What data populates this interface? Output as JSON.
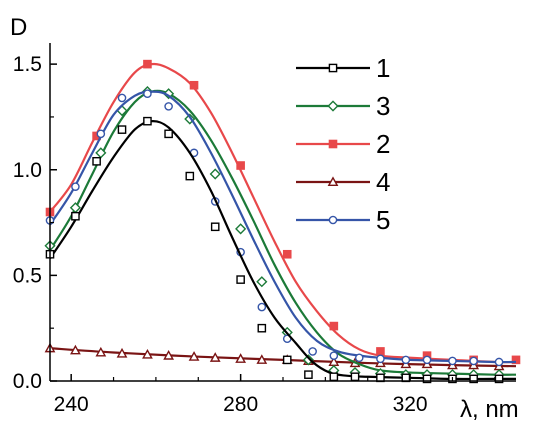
{
  "chart_data": {
    "type": "line",
    "xlabel": "λ, nm",
    "ylabel": "D",
    "xlim": [
      235,
      345
    ],
    "ylim": [
      0,
      1.6
    ],
    "x_ticks": [
      "240",
      "280",
      "320"
    ],
    "x_tick_values": [
      240,
      280,
      320
    ],
    "y_ticks": [
      "0.0",
      "0.5",
      "1.0",
      "1.5"
    ],
    "y_tick_values": [
      0,
      0.5,
      1.0,
      1.5
    ],
    "grid": false,
    "legend_position": "top-right",
    "series": [
      {
        "name": "1",
        "color": "#000000",
        "marker": "square-open",
        "points": [
          [
            235,
            0.58
          ],
          [
            240,
            0.73
          ],
          [
            245,
            0.9
          ],
          [
            250,
            1.06
          ],
          [
            255,
            1.19
          ],
          [
            259,
            1.23
          ],
          [
            263,
            1.2
          ],
          [
            268,
            1.08
          ],
          [
            273,
            0.9
          ],
          [
            278,
            0.68
          ],
          [
            283,
            0.47
          ],
          [
            288,
            0.3
          ],
          [
            293,
            0.18
          ],
          [
            297,
            0.09
          ],
          [
            301,
            0.04
          ],
          [
            305,
            0.025
          ],
          [
            310,
            0.02
          ],
          [
            320,
            0.015
          ],
          [
            330,
            0.01
          ],
          [
            340,
            0.01
          ],
          [
            345,
            0.01
          ]
        ],
        "marker_points": [
          [
            235,
            0.6
          ],
          [
            241,
            0.78
          ],
          [
            246,
            1.04
          ],
          [
            252,
            1.19
          ],
          [
            258,
            1.23
          ],
          [
            263,
            1.17
          ],
          [
            268,
            0.97
          ],
          [
            274,
            0.73
          ],
          [
            280,
            0.48
          ],
          [
            285,
            0.25
          ],
          [
            291,
            0.1
          ],
          [
            296,
            0.03
          ],
          [
            302,
            0.02
          ],
          [
            307,
            0.02
          ],
          [
            313,
            0.015
          ],
          [
            319,
            0.015
          ],
          [
            324,
            0.01
          ],
          [
            330,
            0.01
          ],
          [
            335,
            0.01
          ],
          [
            341,
            0.01
          ]
        ]
      },
      {
        "name": "3",
        "color": "#1c7a38",
        "marker": "diamond-open",
        "points": [
          [
            235,
            0.62
          ],
          [
            240,
            0.78
          ],
          [
            245,
            0.98
          ],
          [
            250,
            1.18
          ],
          [
            255,
            1.32
          ],
          [
            259,
            1.37
          ],
          [
            263,
            1.36
          ],
          [
            268,
            1.28
          ],
          [
            273,
            1.14
          ],
          [
            278,
            0.96
          ],
          [
            283,
            0.76
          ],
          [
            288,
            0.55
          ],
          [
            293,
            0.37
          ],
          [
            298,
            0.23
          ],
          [
            303,
            0.13
          ],
          [
            308,
            0.08
          ],
          [
            313,
            0.05
          ],
          [
            320,
            0.04
          ],
          [
            330,
            0.035
          ],
          [
            340,
            0.03
          ],
          [
            345,
            0.03
          ]
        ],
        "marker_points": [
          [
            235,
            0.64
          ],
          [
            241,
            0.82
          ],
          [
            247,
            1.08
          ],
          [
            252,
            1.28
          ],
          [
            258,
            1.37
          ],
          [
            263,
            1.36
          ],
          [
            268,
            1.24
          ],
          [
            274,
            0.98
          ],
          [
            280,
            0.72
          ],
          [
            285,
            0.47
          ],
          [
            291,
            0.23
          ],
          [
            296,
            0.1
          ],
          [
            302,
            0.05
          ],
          [
            307,
            0.04
          ],
          [
            313,
            0.035
          ],
          [
            319,
            0.03
          ],
          [
            324,
            0.03
          ],
          [
            330,
            0.03
          ],
          [
            335,
            0.03
          ],
          [
            341,
            0.03
          ]
        ]
      },
      {
        "name": "2",
        "color": "#e8484a",
        "marker": "square-filled",
        "points": [
          [
            235,
            0.8
          ],
          [
            240,
            0.93
          ],
          [
            245,
            1.13
          ],
          [
            250,
            1.32
          ],
          [
            255,
            1.46
          ],
          [
            259,
            1.5
          ],
          [
            263,
            1.48
          ],
          [
            268,
            1.41
          ],
          [
            273,
            1.27
          ],
          [
            278,
            1.08
          ],
          [
            283,
            0.87
          ],
          [
            288,
            0.66
          ],
          [
            293,
            0.47
          ],
          [
            298,
            0.33
          ],
          [
            303,
            0.22
          ],
          [
            308,
            0.15
          ],
          [
            313,
            0.12
          ],
          [
            320,
            0.11
          ],
          [
            330,
            0.1
          ],
          [
            340,
            0.09
          ],
          [
            345,
            0.09
          ]
        ],
        "marker_points": [
          [
            235,
            0.8
          ],
          [
            246,
            1.16
          ],
          [
            258,
            1.5
          ],
          [
            269,
            1.4
          ],
          [
            280,
            1.02
          ],
          [
            291,
            0.6
          ],
          [
            302,
            0.26
          ],
          [
            313,
            0.14
          ],
          [
            324,
            0.12
          ],
          [
            335,
            0.1
          ],
          [
            345,
            0.1
          ]
        ]
      },
      {
        "name": "4",
        "color": "#7a1414",
        "marker": "triangle-open",
        "points": [
          [
            235,
            0.155
          ],
          [
            250,
            0.135
          ],
          [
            270,
            0.115
          ],
          [
            290,
            0.1
          ],
          [
            310,
            0.085
          ],
          [
            330,
            0.075
          ],
          [
            345,
            0.07
          ]
        ],
        "marker_points": [
          [
            235,
            0.155
          ],
          [
            241,
            0.145
          ],
          [
            247,
            0.135
          ],
          [
            252,
            0.13
          ],
          [
            258,
            0.125
          ],
          [
            263,
            0.12
          ],
          [
            269,
            0.115
          ],
          [
            274,
            0.11
          ],
          [
            280,
            0.105
          ],
          [
            285,
            0.1
          ],
          [
            291,
            0.1
          ],
          [
            296,
            0.095
          ],
          [
            302,
            0.09
          ],
          [
            307,
            0.085
          ],
          [
            313,
            0.085
          ],
          [
            319,
            0.08
          ],
          [
            324,
            0.08
          ],
          [
            330,
            0.075
          ],
          [
            335,
            0.075
          ],
          [
            341,
            0.07
          ]
        ]
      },
      {
        "name": "5",
        "color": "#3555a8",
        "marker": "circle-open",
        "points": [
          [
            235,
            0.74
          ],
          [
            240,
            0.89
          ],
          [
            245,
            1.08
          ],
          [
            250,
            1.26
          ],
          [
            255,
            1.35
          ],
          [
            259,
            1.37
          ],
          [
            263,
            1.35
          ],
          [
            268,
            1.25
          ],
          [
            273,
            1.08
          ],
          [
            278,
            0.88
          ],
          [
            283,
            0.67
          ],
          [
            288,
            0.47
          ],
          [
            293,
            0.3
          ],
          [
            298,
            0.19
          ],
          [
            303,
            0.14
          ],
          [
            308,
            0.12
          ],
          [
            313,
            0.11
          ],
          [
            320,
            0.1
          ],
          [
            330,
            0.095
          ],
          [
            340,
            0.09
          ],
          [
            345,
            0.09
          ]
        ],
        "marker_points": [
          [
            235,
            0.76
          ],
          [
            241,
            0.92
          ],
          [
            247,
            1.17
          ],
          [
            252,
            1.34
          ],
          [
            258,
            1.36
          ],
          [
            263,
            1.3
          ],
          [
            269,
            1.08
          ],
          [
            274,
            0.85
          ],
          [
            280,
            0.61
          ],
          [
            285,
            0.35
          ],
          [
            291,
            0.2
          ],
          [
            297,
            0.14
          ],
          [
            302,
            0.12
          ],
          [
            308,
            0.11
          ],
          [
            313,
            0.105
          ],
          [
            319,
            0.1
          ],
          [
            324,
            0.1
          ],
          [
            330,
            0.095
          ],
          [
            335,
            0.095
          ],
          [
            341,
            0.09
          ]
        ]
      }
    ],
    "legend_order": [
      "1",
      "3",
      "2",
      "4",
      "5"
    ]
  }
}
